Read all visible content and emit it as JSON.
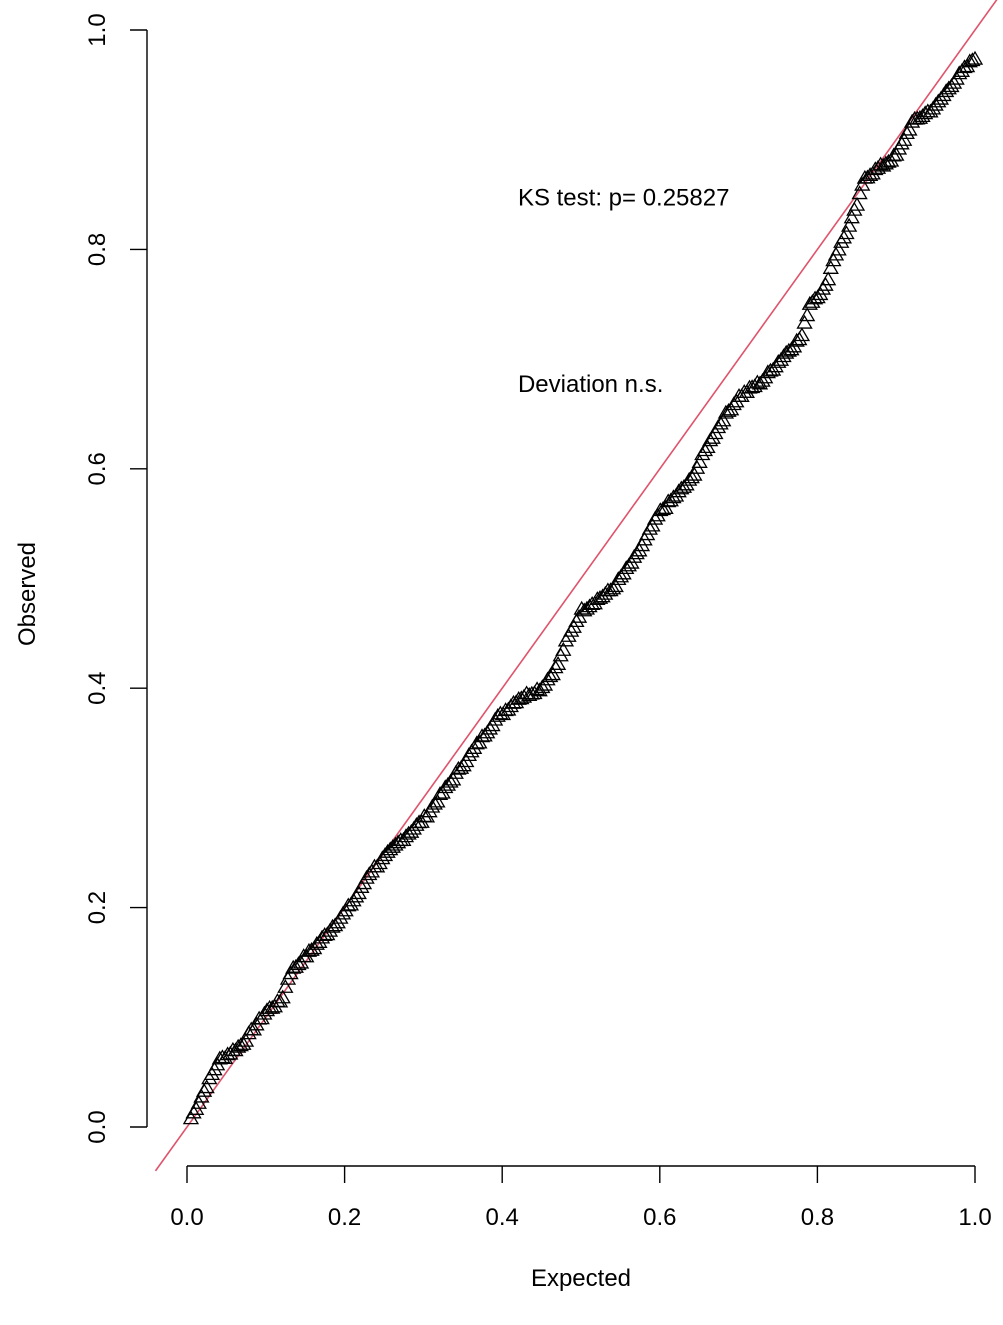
{
  "chart_data": {
    "type": "scatter",
    "title": "",
    "xlabel": "Expected",
    "ylabel": "Observed",
    "xlim": [
      0,
      1
    ],
    "ylim": [
      0,
      1
    ],
    "x_ticks": [
      "0.0",
      "0.2",
      "0.4",
      "0.6",
      "0.8",
      "1.0"
    ],
    "y_ticks": [
      "0.0",
      "0.2",
      "0.4",
      "0.6",
      "0.8",
      "1.0"
    ],
    "grid": false,
    "legend": "none",
    "marker": "open-triangle",
    "point_color": "#000000",
    "reference_line": {
      "slope": 1,
      "intercept": 0,
      "color": "#DF536B"
    },
    "annotations": [
      {
        "text": "KS test: p= 0.25827",
        "x": 0.42,
        "y": 0.84
      },
      {
        "text": "Deviation  n.s.",
        "x": 0.42,
        "y": 0.67
      }
    ],
    "curve": [
      [
        0.0,
        0.0
      ],
      [
        0.02,
        0.03
      ],
      [
        0.04,
        0.06
      ],
      [
        0.07,
        0.075
      ],
      [
        0.1,
        0.105
      ],
      [
        0.12,
        0.115
      ],
      [
        0.13,
        0.14
      ],
      [
        0.17,
        0.17
      ],
      [
        0.2,
        0.195
      ],
      [
        0.22,
        0.215
      ],
      [
        0.23,
        0.23
      ],
      [
        0.27,
        0.26
      ],
      [
        0.3,
        0.28
      ],
      [
        0.33,
        0.31
      ],
      [
        0.36,
        0.34
      ],
      [
        0.39,
        0.37
      ],
      [
        0.42,
        0.39
      ],
      [
        0.45,
        0.4
      ],
      [
        0.47,
        0.42
      ],
      [
        0.48,
        0.44
      ],
      [
        0.5,
        0.47
      ],
      [
        0.54,
        0.49
      ],
      [
        0.57,
        0.52
      ],
      [
        0.6,
        0.56
      ],
      [
        0.62,
        0.575
      ],
      [
        0.64,
        0.59
      ],
      [
        0.66,
        0.62
      ],
      [
        0.68,
        0.645
      ],
      [
        0.7,
        0.665
      ],
      [
        0.73,
        0.68
      ],
      [
        0.76,
        0.705
      ],
      [
        0.78,
        0.72
      ],
      [
        0.79,
        0.75
      ],
      [
        0.81,
        0.765
      ],
      [
        0.82,
        0.79
      ],
      [
        0.84,
        0.82
      ],
      [
        0.85,
        0.84
      ],
      [
        0.86,
        0.865
      ],
      [
        0.88,
        0.875
      ],
      [
        0.9,
        0.885
      ],
      [
        0.92,
        0.915
      ],
      [
        0.95,
        0.93
      ],
      [
        0.97,
        0.95
      ],
      [
        1.0,
        0.975
      ]
    ]
  }
}
